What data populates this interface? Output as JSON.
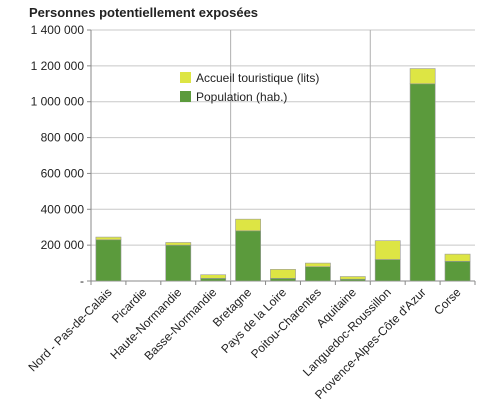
{
  "chart_data": {
    "type": "bar",
    "stacked": true,
    "title": "Personnes potentiellement exposées",
    "xlabel": "",
    "ylabel": "",
    "ylim": [
      0,
      1400000
    ],
    "yticks": [
      0,
      200000,
      400000,
      600000,
      800000,
      1000000,
      1200000,
      1400000
    ],
    "ytick_labels": [
      "-",
      "200 000",
      "400 000",
      "600 000",
      "800 000",
      "1 000 000",
      "1 200 000",
      "1 400 000"
    ],
    "grid": true,
    "legend_position": "top-center",
    "categories": [
      "Nord - Pas-de-Calais",
      "Picardie",
      "Haute-Normandie",
      "Basse-Normandie",
      "Bretagne",
      "Pays de la Loire",
      "Poitou-Charentes",
      "Aquitaine",
      "Languedoc-Roussillon",
      "Provence-Alpes-Côte d'Azur",
      "Corse"
    ],
    "series": [
      {
        "name": "Population (hab.)",
        "color": "#5b9a3c",
        "values": [
          230000,
          0,
          200000,
          15000,
          280000,
          15000,
          80000,
          10000,
          120000,
          1100000,
          110000
        ]
      },
      {
        "name": "Accueil touristique (lits)",
        "color": "#dde544",
        "values": [
          15000,
          0,
          15000,
          20000,
          65000,
          50000,
          20000,
          15000,
          105000,
          85000,
          40000
        ]
      }
    ]
  }
}
